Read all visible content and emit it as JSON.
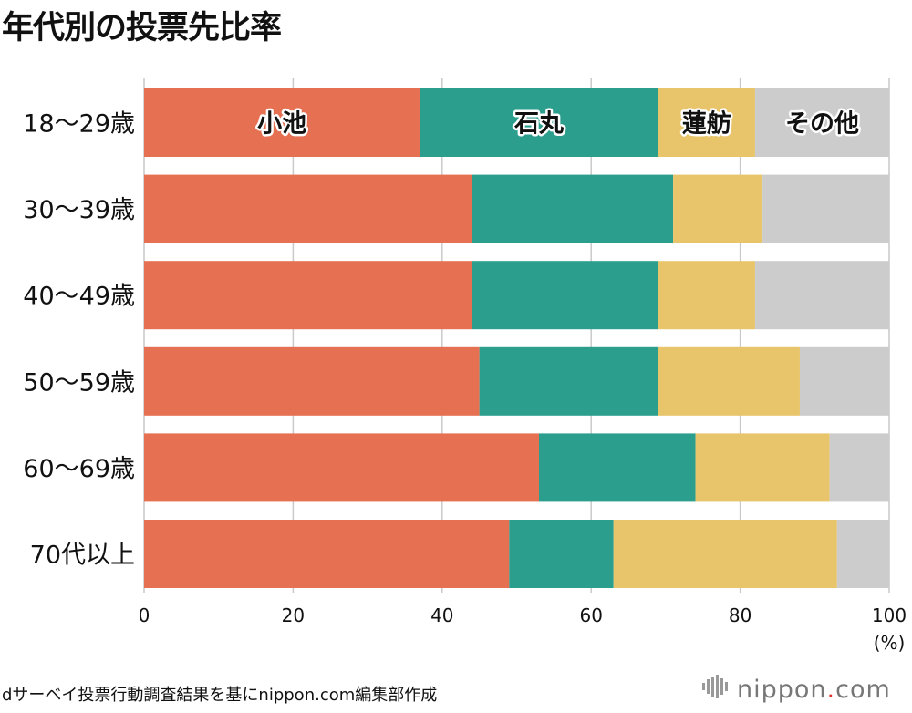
{
  "title": "年代別の投票先比率",
  "footer": "dサーベイ投票行動調査結果を基にnippon.com編集部作成",
  "logo": {
    "name": "nippon",
    "dot": ".",
    "suffix": "com"
  },
  "unit_label": "(%)",
  "chart_data": {
    "type": "bar",
    "orientation": "horizontal",
    "stacked": true,
    "title": "年代別の投票先比率",
    "xlabel": "(%)",
    "ylabel": "",
    "xlim": [
      0,
      100
    ],
    "xticks": [
      0,
      20,
      40,
      60,
      80,
      100
    ],
    "grid": true,
    "categories": [
      "18〜29歳",
      "30〜39歳",
      "40〜49歳",
      "50〜59歳",
      "60〜69歳",
      "70代以上"
    ],
    "series": [
      {
        "name": "小池",
        "color": "#e57052",
        "values": [
          37,
          44,
          44,
          45,
          53,
          49
        ]
      },
      {
        "name": "石丸",
        "color": "#2b9e8e",
        "values": [
          32,
          27,
          25,
          24,
          21,
          14
        ]
      },
      {
        "name": "蓮舫",
        "color": "#e8c46b",
        "values": [
          13,
          12,
          13,
          19,
          18,
          30
        ]
      },
      {
        "name": "その他",
        "color": "#cccccc",
        "values": [
          18,
          17,
          18,
          12,
          8,
          7
        ]
      }
    ]
  }
}
